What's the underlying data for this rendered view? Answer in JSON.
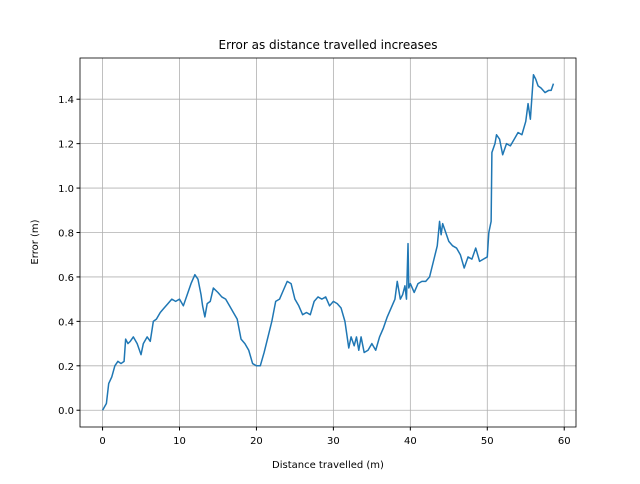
{
  "chart_data": {
    "type": "line",
    "title": "Error as distance travelled increases",
    "x_label": "Distance travelled (m)",
    "y_label": "Error (m)",
    "x": [
      0,
      0.5,
      0.8,
      1.2,
      1.6,
      2.0,
      2.4,
      2.8,
      3.0,
      3.3,
      3.6,
      4.0,
      4.5,
      5.0,
      5.3,
      5.8,
      6.2,
      6.6,
      7.0,
      7.5,
      8,
      8.5,
      9,
      9.5,
      10,
      10.5,
      11,
      11.5,
      12,
      12.4,
      12.8,
      13,
      13.3,
      13.6,
      14,
      14.4,
      15,
      15.5,
      16,
      16.5,
      17,
      17.5,
      18,
      18.5,
      19,
      19.5,
      20,
      20.5,
      21,
      21.5,
      22,
      22.5,
      23,
      23.5,
      24,
      24.5,
      25,
      25.5,
      26,
      26.5,
      27,
      27.5,
      28,
      28.5,
      29,
      29.5,
      30,
      30.5,
      31,
      31.5,
      32,
      32.3,
      32.7,
      33,
      33.3,
      33.6,
      34,
      34.5,
      35,
      35.5,
      36,
      36.5,
      37,
      37.5,
      38,
      38.3,
      38.7,
      39,
      39.3,
      39.5,
      39.7,
      39.8,
      40,
      40.5,
      41,
      41.5,
      42,
      42.5,
      43,
      43.5,
      43.8,
      44,
      44.2,
      44.5,
      45,
      45.5,
      46,
      46.5,
      47,
      47.5,
      48,
      48.5,
      49,
      49.5,
      50,
      50.2,
      50.5,
      50.6,
      51,
      51.2,
      51.6,
      52,
      52.5,
      53,
      53.5,
      54,
      54.5,
      55,
      55.3,
      55.6,
      56,
      56.3,
      56.6,
      57,
      57.5,
      58,
      58.3,
      58.6
    ],
    "series": [
      {
        "name": "Error",
        "color": "#1f77b4",
        "values": [
          0.0,
          0.03,
          0.12,
          0.15,
          0.2,
          0.22,
          0.21,
          0.22,
          0.32,
          0.3,
          0.31,
          0.33,
          0.3,
          0.25,
          0.3,
          0.33,
          0.31,
          0.4,
          0.41,
          0.44,
          0.46,
          0.48,
          0.5,
          0.49,
          0.5,
          0.47,
          0.52,
          0.57,
          0.61,
          0.59,
          0.52,
          0.47,
          0.42,
          0.48,
          0.49,
          0.55,
          0.53,
          0.51,
          0.5,
          0.47,
          0.44,
          0.41,
          0.32,
          0.3,
          0.27,
          0.21,
          0.2,
          0.2,
          0.26,
          0.33,
          0.4,
          0.49,
          0.5,
          0.54,
          0.58,
          0.57,
          0.5,
          0.47,
          0.43,
          0.44,
          0.43,
          0.49,
          0.51,
          0.5,
          0.51,
          0.47,
          0.49,
          0.48,
          0.46,
          0.4,
          0.28,
          0.33,
          0.29,
          0.33,
          0.27,
          0.33,
          0.26,
          0.27,
          0.3,
          0.27,
          0.33,
          0.37,
          0.42,
          0.46,
          0.5,
          0.58,
          0.5,
          0.52,
          0.56,
          0.5,
          0.75,
          0.55,
          0.57,
          0.53,
          0.57,
          0.58,
          0.58,
          0.6,
          0.67,
          0.74,
          0.85,
          0.79,
          0.84,
          0.81,
          0.76,
          0.74,
          0.73,
          0.7,
          0.64,
          0.69,
          0.68,
          0.73,
          0.67,
          0.68,
          0.69,
          0.8,
          0.85,
          1.16,
          1.2,
          1.24,
          1.22,
          1.15,
          1.2,
          1.19,
          1.22,
          1.25,
          1.24,
          1.3,
          1.38,
          1.31,
          1.51,
          1.49,
          1.46,
          1.45,
          1.43,
          1.44,
          1.44,
          1.47
        ]
      }
    ],
    "xlim": [
      -2.93,
      61.53
    ],
    "ylim": [
      -0.0755,
      1.5855
    ],
    "xticks": [
      0,
      10,
      20,
      30,
      40,
      50,
      60
    ],
    "yticks": [
      {
        "value": 0,
        "label": "0.0"
      },
      {
        "value": 0.2,
        "label": "0.2"
      },
      {
        "value": 0.4,
        "label": "0.4"
      },
      {
        "value": 0.6,
        "label": "0.6"
      },
      {
        "value": 0.8,
        "label": "0.8"
      },
      {
        "value": 1.0,
        "label": "1.0"
      },
      {
        "value": 1.2,
        "label": "1.2"
      },
      {
        "value": 1.4,
        "label": "1.4"
      }
    ],
    "grid": true
  }
}
